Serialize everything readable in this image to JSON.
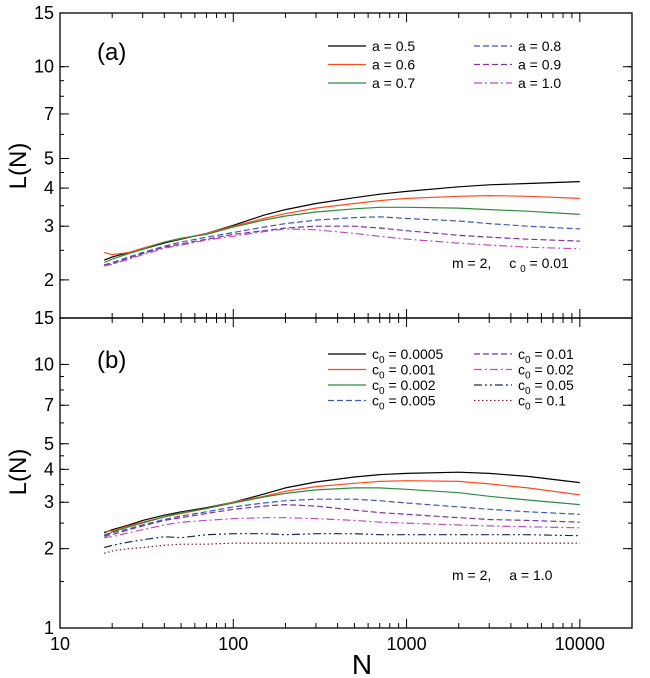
{
  "figure": {
    "xlabel": "N",
    "ylabel": "L(N)",
    "x_ticks": [
      10,
      100,
      1000,
      10000
    ],
    "x_tick_labels": [
      "10",
      "100",
      "1000",
      "10000"
    ]
  },
  "chart_data": [
    {
      "type": "line",
      "panel_label": "(a)",
      "annotation": "m = 2,   c0 = 0.01",
      "annotation_parts": {
        "m": "m = 2,",
        "c": "c",
        "sub": "0",
        "val": " = 0.01"
      },
      "xlabel": "N",
      "ylabel": "L(N)",
      "xscale": "log",
      "yscale": "log",
      "xlim": [
        10,
        20000
      ],
      "ylim": [
        1.5,
        15
      ],
      "y_ticks": [
        2,
        3,
        4,
        5,
        7,
        10,
        15
      ],
      "y_tick_labels": [
        "2",
        "3",
        "4",
        "5",
        "7",
        "10",
        "15"
      ],
      "legend_position": "top-right",
      "x": [
        18,
        20,
        25,
        30,
        40,
        50,
        70,
        100,
        150,
        200,
        300,
        500,
        700,
        1000,
        2000,
        3000,
        5000,
        10000
      ],
      "series": [
        {
          "name": "a = 0.5",
          "prefix": "a",
          "value": " = 0.5",
          "color": "#000000",
          "dash": "solid",
          "values": [
            2.32,
            2.38,
            2.46,
            2.52,
            2.64,
            2.72,
            2.84,
            3.02,
            3.26,
            3.4,
            3.56,
            3.72,
            3.82,
            3.9,
            4.04,
            4.1,
            4.14,
            4.2
          ]
        },
        {
          "name": "a = 0.6",
          "prefix": "a",
          "value": " = 0.6",
          "color": "#ff4d1a",
          "dash": "solid",
          "values": [
            2.46,
            2.42,
            2.46,
            2.54,
            2.66,
            2.73,
            2.84,
            3.0,
            3.18,
            3.3,
            3.44,
            3.56,
            3.64,
            3.7,
            3.76,
            3.78,
            3.76,
            3.7
          ]
        },
        {
          "name": "a = 0.7",
          "prefix": "a",
          "value": " = 0.7",
          "color": "#2e8b3e",
          "dash": "solid",
          "values": [
            2.28,
            2.34,
            2.44,
            2.52,
            2.66,
            2.74,
            2.82,
            2.98,
            3.14,
            3.24,
            3.34,
            3.42,
            3.46,
            3.46,
            3.44,
            3.4,
            3.36,
            3.28
          ]
        },
        {
          "name": "a = 0.8",
          "prefix": "a",
          "value": " = 0.8",
          "color": "#3f57b5",
          "dash": "dash",
          "values": [
            2.24,
            2.28,
            2.38,
            2.46,
            2.58,
            2.66,
            2.76,
            2.86,
            2.98,
            3.06,
            3.14,
            3.2,
            3.22,
            3.18,
            3.12,
            3.06,
            3.0,
            2.94
          ]
        },
        {
          "name": "a = 0.9",
          "prefix": "a",
          "value": " = 0.9",
          "color": "#7b3399",
          "dash": "dash",
          "values": [
            2.24,
            2.26,
            2.36,
            2.44,
            2.56,
            2.62,
            2.72,
            2.82,
            2.9,
            2.96,
            3.0,
            3.0,
            2.96,
            2.9,
            2.8,
            2.76,
            2.72,
            2.68
          ]
        },
        {
          "name": "a = 1.0",
          "prefix": "a",
          "value": " = 1.0",
          "color": "#c04bbf",
          "dash": "dashdot",
          "values": [
            2.22,
            2.25,
            2.34,
            2.42,
            2.54,
            2.6,
            2.7,
            2.78,
            2.88,
            2.94,
            2.92,
            2.84,
            2.78,
            2.72,
            2.64,
            2.6,
            2.56,
            2.53
          ]
        }
      ]
    },
    {
      "type": "line",
      "panel_label": "(b)",
      "annotation": "m = 2,   a = 1.0",
      "annotation_parts": {
        "m": "m = 2,",
        "c": "a",
        "sub": "",
        "val": " = 1.0"
      },
      "xlabel": "N",
      "ylabel": "L(N)",
      "xscale": "log",
      "yscale": "log",
      "xlim": [
        10,
        20000
      ],
      "ylim": [
        1,
        15
      ],
      "y_ticks": [
        1,
        2,
        3,
        4,
        5,
        7,
        10,
        15
      ],
      "y_tick_labels": [
        "1",
        "2",
        "3",
        "4",
        "5",
        "7",
        "10",
        "15"
      ],
      "legend_position": "top-right",
      "x": [
        18,
        20,
        25,
        30,
        40,
        50,
        70,
        100,
        150,
        200,
        300,
        500,
        700,
        1000,
        2000,
        3000,
        5000,
        10000
      ],
      "series": [
        {
          "name": "c0 = 0.0005",
          "prefix": "c",
          "sub": "0",
          "value": " = 0.0005",
          "color": "#000000",
          "dash": "solid",
          "values": [
            2.3,
            2.36,
            2.46,
            2.56,
            2.68,
            2.76,
            2.86,
            3.0,
            3.22,
            3.4,
            3.58,
            3.74,
            3.82,
            3.86,
            3.9,
            3.86,
            3.76,
            3.56
          ]
        },
        {
          "name": "c0 = 0.001",
          "prefix": "c",
          "sub": "0",
          "value": " = 0.001",
          "color": "#ff4d1a",
          "dash": "solid",
          "values": [
            2.32,
            2.34,
            2.44,
            2.52,
            2.64,
            2.72,
            2.84,
            3.0,
            3.16,
            3.3,
            3.44,
            3.54,
            3.6,
            3.62,
            3.6,
            3.52,
            3.4,
            3.2
          ]
        },
        {
          "name": "c0 = 0.002",
          "prefix": "c",
          "sub": "0",
          "value": " = 0.002",
          "color": "#2e8b3e",
          "dash": "solid",
          "values": [
            2.2,
            2.32,
            2.42,
            2.5,
            2.64,
            2.74,
            2.84,
            2.98,
            3.14,
            3.24,
            3.34,
            3.4,
            3.4,
            3.36,
            3.26,
            3.16,
            3.06,
            2.94
          ]
        },
        {
          "name": "c0 = 0.005",
          "prefix": "c",
          "sub": "0",
          "value": " = 0.005",
          "color": "#3f57b5",
          "dash": "dash",
          "values": [
            2.26,
            2.3,
            2.38,
            2.46,
            2.58,
            2.66,
            2.76,
            2.88,
            2.98,
            3.04,
            3.08,
            3.08,
            3.04,
            2.98,
            2.88,
            2.82,
            2.76,
            2.7
          ]
        },
        {
          "name": "c0 = 0.01",
          "prefix": "c",
          "sub": "0",
          "value": " = 0.01",
          "color": "#7b3399",
          "dash": "dash",
          "values": [
            2.24,
            2.26,
            2.36,
            2.44,
            2.56,
            2.62,
            2.72,
            2.82,
            2.9,
            2.94,
            2.9,
            2.8,
            2.74,
            2.7,
            2.62,
            2.58,
            2.56,
            2.52
          ]
        },
        {
          "name": "c0 = 0.02",
          "prefix": "c",
          "sub": "0",
          "value": " = 0.02",
          "color": "#c04bbf",
          "dash": "dashdot",
          "values": [
            2.2,
            2.22,
            2.3,
            2.36,
            2.46,
            2.52,
            2.56,
            2.6,
            2.62,
            2.62,
            2.6,
            2.56,
            2.52,
            2.5,
            2.46,
            2.44,
            2.42,
            2.4
          ]
        },
        {
          "name": "c0 = 0.05",
          "prefix": "c",
          "sub": "0",
          "value": " = 0.05",
          "color": "#1f2a55",
          "dash": "dashdotdot",
          "values": [
            2.02,
            2.06,
            2.12,
            2.16,
            2.22,
            2.2,
            2.26,
            2.28,
            2.28,
            2.26,
            2.28,
            2.28,
            2.26,
            2.26,
            2.26,
            2.26,
            2.26,
            2.24
          ]
        },
        {
          "name": "c0 = 0.1",
          "prefix": "c",
          "sub": "0",
          "value": " = 0.1",
          "color": "#7a1f1f",
          "dash": "dot",
          "values": [
            1.92,
            1.96,
            2.0,
            2.02,
            2.06,
            2.08,
            2.08,
            2.1,
            2.1,
            2.1,
            2.1,
            2.1,
            2.1,
            2.1,
            2.1,
            2.1,
            2.1,
            2.1
          ]
        }
      ]
    }
  ]
}
